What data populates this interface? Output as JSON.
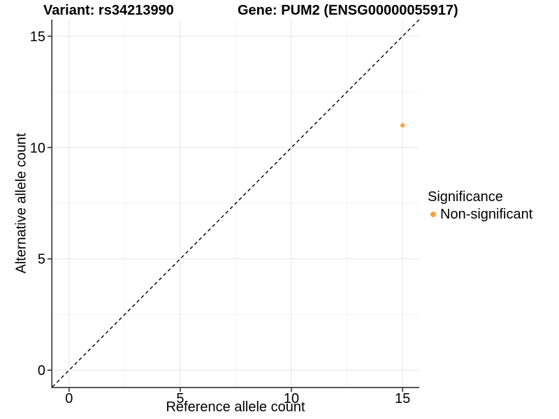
{
  "chart_data": {
    "type": "scatter",
    "titles": {
      "left": "Variant: rs34213990",
      "right": "Gene: PUM2 (ENSG00000055917)"
    },
    "xlabel": "Reference allele count",
    "ylabel": "Alternative allele count",
    "xlim": [
      -0.75,
      15.75
    ],
    "ylim": [
      -0.75,
      15.75
    ],
    "xticks": [
      0,
      5,
      10,
      15
    ],
    "yticks": [
      0,
      5,
      10,
      15
    ],
    "minor_xticks": [
      2.5,
      7.5,
      12.5
    ],
    "minor_yticks": [
      2.5,
      7.5,
      12.5
    ],
    "grid": "major+minor",
    "reference_line": {
      "slope": 1,
      "intercept": 0,
      "style": "dashed",
      "color": "#000000"
    },
    "series": [
      {
        "name": "Non-significant",
        "color": "#FAA43E",
        "points": [
          {
            "x": 15,
            "y": 11
          }
        ]
      }
    ],
    "legend": {
      "title": "Significance",
      "position": "right",
      "entries": [
        {
          "label": "Non-significant",
          "color": "#FAA43E"
        }
      ]
    }
  },
  "colors": {
    "background": "#FFFFFF",
    "grid_major": "#E7E7E7",
    "grid_minor": "#F3F3F3",
    "axis_line": "#333333",
    "text": "#000000"
  }
}
